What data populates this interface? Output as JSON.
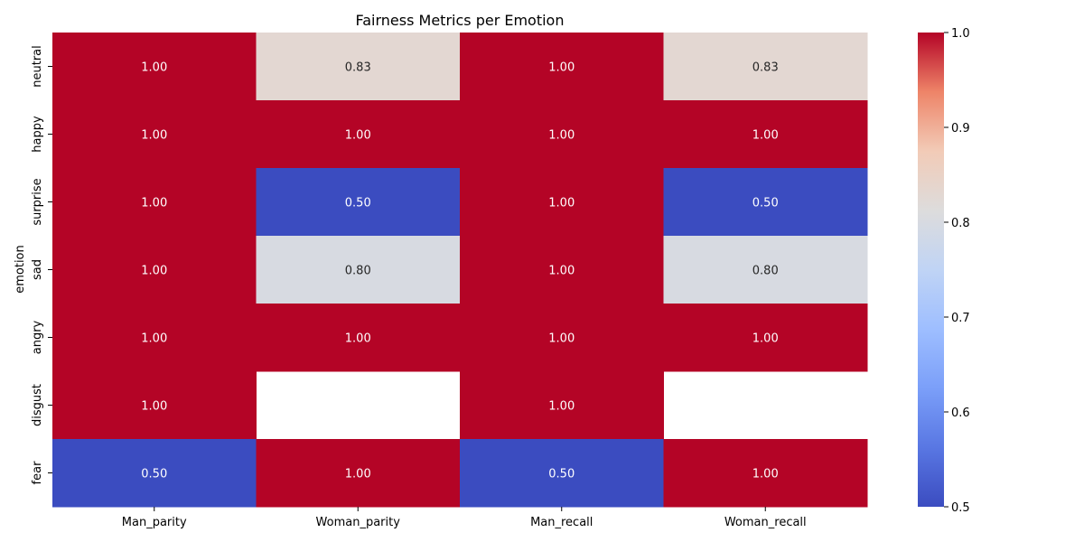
{
  "chart_data": {
    "type": "heatmap",
    "title": "Fairness Metrics per Emotion",
    "xlabel": "",
    "ylabel": "emotion",
    "columns": [
      "Man_parity",
      "Woman_parity",
      "Man_recall",
      "Woman_recall"
    ],
    "rows": [
      "neutral",
      "happy",
      "surprise",
      "sad",
      "angry",
      "disgust",
      "fear"
    ],
    "values": [
      [
        1.0,
        0.83,
        1.0,
        0.83
      ],
      [
        1.0,
        1.0,
        1.0,
        1.0
      ],
      [
        1.0,
        0.5,
        1.0,
        0.5
      ],
      [
        1.0,
        0.8,
        1.0,
        0.8
      ],
      [
        1.0,
        1.0,
        1.0,
        1.0
      ],
      [
        1.0,
        null,
        1.0,
        null
      ],
      [
        0.5,
        1.0,
        0.5,
        1.0
      ]
    ],
    "value_format": "0.00",
    "colormap": "coolwarm",
    "colorbar": {
      "range": [
        0.5,
        1.0
      ],
      "ticks": [
        "0.5",
        "0.6",
        "0.7",
        "0.8",
        "0.9",
        "1.0"
      ]
    },
    "grid": false
  }
}
